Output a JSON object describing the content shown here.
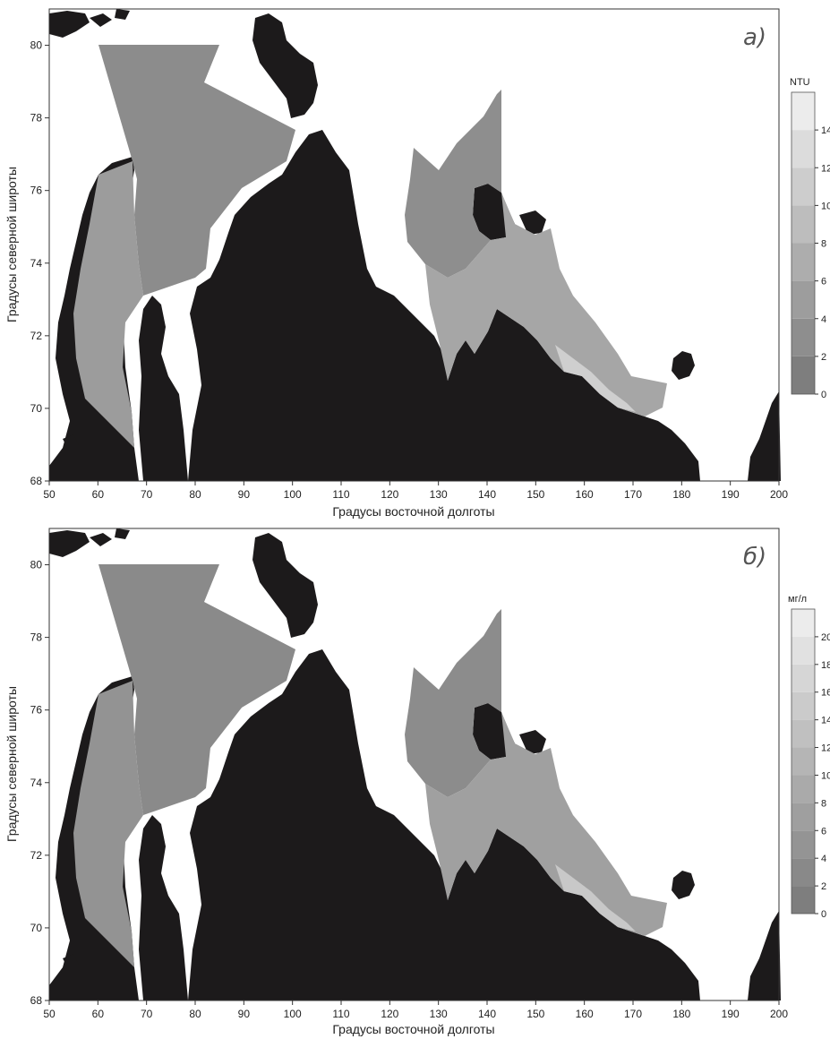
{
  "colors": {
    "land": "#1c1a1b",
    "sea_base": "#8a8a8a",
    "background": "#ffffff",
    "scale_low": "#7e7e7e",
    "scale_high": "#ececec"
  },
  "panels": [
    {
      "letter": "а)",
      "x_title": "Градусы восточной долготы",
      "y_title": "Градусы северной широты",
      "x_ticks": [
        "50",
        "60",
        "70",
        "80",
        "90",
        "100",
        "110",
        "120",
        "130",
        "140",
        "150",
        "160",
        "170",
        "180",
        "190",
        "200"
      ],
      "y_ticks": [
        "68",
        "70",
        "72",
        "74",
        "76",
        "78",
        "80"
      ],
      "colorbar": {
        "unit": "NTU",
        "labels": [
          "0",
          "2",
          "4",
          "6",
          "8",
          "10",
          "12",
          "14"
        ],
        "max": 16
      }
    },
    {
      "letter": "б)",
      "x_title": "Градусы восточной долготы",
      "y_title": "Градусы северной широты",
      "x_ticks": [
        "50",
        "60",
        "70",
        "80",
        "90",
        "100",
        "110",
        "120",
        "130",
        "140",
        "150",
        "160",
        "170",
        "180",
        "190",
        "200"
      ],
      "y_ticks": [
        "68",
        "70",
        "72",
        "74",
        "76",
        "78",
        "80"
      ],
      "colorbar": {
        "unit": "мг/л",
        "labels": [
          "0",
          "2",
          "4",
          "6",
          "8",
          "10",
          "12",
          "14",
          "16",
          "18",
          "20"
        ],
        "max": 22
      }
    }
  ]
}
